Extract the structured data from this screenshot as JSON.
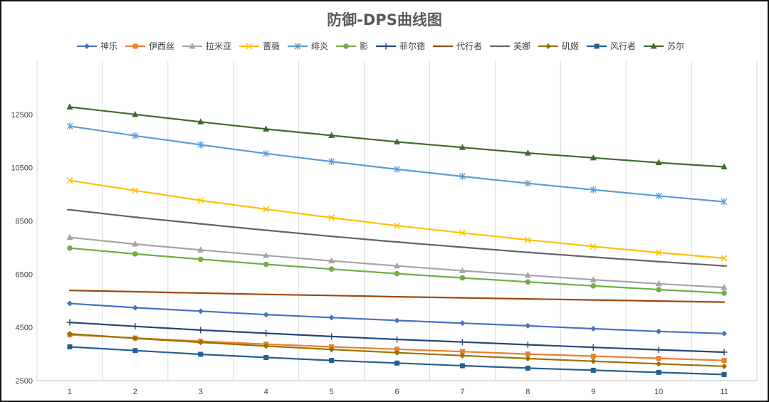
{
  "chart_data": {
    "type": "line",
    "title": "防御-DPS曲线图",
    "xlabel": "",
    "ylabel": "",
    "x": [
      1,
      2,
      3,
      4,
      5,
      6,
      7,
      8,
      9,
      10,
      11
    ],
    "x_ticks": [
      "1",
      "2",
      "3",
      "4",
      "5",
      "6",
      "7",
      "8",
      "9",
      "10",
      "11"
    ],
    "ylim": [
      2500,
      14500
    ],
    "y_ticks": [
      2500,
      4500,
      6500,
      8500,
      10500,
      12500
    ],
    "y_tick_labels": [
      "2500",
      "4500",
      "6500",
      "8500",
      "10500",
      "12500"
    ],
    "grid": "vertical",
    "legend_position": "top",
    "series": [
      {
        "name": "神乐",
        "color": "#4472C4",
        "marker": "diamond",
        "values": [
          5400,
          5240,
          5110,
          4980,
          4870,
          4760,
          4660,
          4560,
          4450,
          4350,
          4270
        ]
      },
      {
        "name": "伊西丝",
        "color": "#ED7D31",
        "marker": "square",
        "values": [
          4220,
          4100,
          3980,
          3870,
          3770,
          3680,
          3590,
          3500,
          3420,
          3340,
          3260
        ]
      },
      {
        "name": "拉米亚",
        "color": "#A5A5A5",
        "marker": "triangle",
        "values": [
          7880,
          7630,
          7410,
          7200,
          7000,
          6810,
          6630,
          6460,
          6290,
          6140,
          6000
        ]
      },
      {
        "name": "蔷薇",
        "color": "#FFC000",
        "marker": "x",
        "values": [
          10020,
          9640,
          9270,
          8940,
          8620,
          8320,
          8050,
          7790,
          7540,
          7310,
          7100
        ]
      },
      {
        "name": "绯炎",
        "color": "#5B9BD5",
        "marker": "asterisk",
        "values": [
          12060,
          11700,
          11360,
          11030,
          10730,
          10440,
          10170,
          9910,
          9670,
          9440,
          9220
        ]
      },
      {
        "name": "影",
        "color": "#70AD47",
        "marker": "circle",
        "values": [
          7480,
          7260,
          7060,
          6870,
          6690,
          6520,
          6360,
          6210,
          6060,
          5920,
          5790
        ]
      },
      {
        "name": "菲尔德",
        "color": "#264478",
        "marker": "plus",
        "values": [
          4690,
          4540,
          4400,
          4280,
          4160,
          4050,
          3950,
          3850,
          3750,
          3660,
          3570
        ]
      },
      {
        "name": "代行者",
        "color": "#9E480E",
        "marker": "none",
        "values": [
          5890,
          5840,
          5790,
          5740,
          5700,
          5650,
          5610,
          5570,
          5530,
          5490,
          5450
        ]
      },
      {
        "name": "芙娜",
        "color": "#636363",
        "marker": "dash",
        "values": [
          8920,
          8640,
          8390,
          8150,
          7920,
          7710,
          7510,
          7320,
          7140,
          6970,
          6810
        ]
      },
      {
        "name": "矶姬",
        "color": "#997300",
        "marker": "diamond",
        "values": [
          4260,
          4090,
          3940,
          3800,
          3670,
          3550,
          3440,
          3330,
          3230,
          3130,
          3040
        ]
      },
      {
        "name": "风行者",
        "color": "#255E91",
        "marker": "square",
        "values": [
          3770,
          3630,
          3490,
          3370,
          3260,
          3160,
          3060,
          2970,
          2890,
          2810,
          2730
        ]
      },
      {
        "name": "苏尔",
        "color": "#43682B",
        "marker": "triangle",
        "values": [
          12780,
          12500,
          12220,
          11950,
          11710,
          11470,
          11260,
          11050,
          10870,
          10690,
          10530
        ]
      }
    ]
  }
}
